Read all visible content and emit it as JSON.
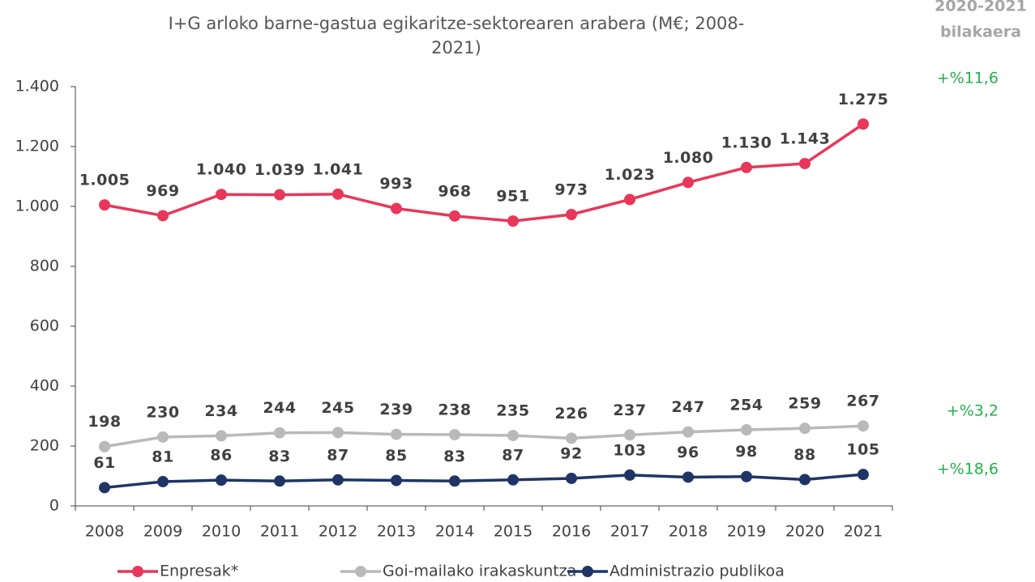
{
  "chart_data": {
    "type": "line",
    "title": [
      "I+G arloko barne-gastua egikaritze-sektorearen arabera (M€; 2008-",
      "2021)"
    ],
    "categories": [
      "2008",
      "2009",
      "2010",
      "2011",
      "2012",
      "2013",
      "2014",
      "2015",
      "2016",
      "2017",
      "2018",
      "2019",
      "2020",
      "2021"
    ],
    "series": [
      {
        "name": "Enpresak*",
        "color": "#e8375a",
        "values": [
          1005,
          969,
          1040,
          1039,
          1041,
          993,
          968,
          951,
          973,
          1023,
          1080,
          1130,
          1143,
          1275
        ],
        "value_labels": [
          "1.005",
          "969",
          "1.040",
          "1.039",
          "1.041",
          "993",
          "968",
          "951",
          "973",
          "1.023",
          "1.080",
          "1.130",
          "1.143",
          "1.275"
        ]
      },
      {
        "name": "Goi-mailako irakaskuntza",
        "color": "#b9b9b9",
        "values": [
          198,
          230,
          234,
          244,
          245,
          239,
          238,
          235,
          226,
          237,
          247,
          254,
          259,
          267
        ]
      },
      {
        "name": "Administrazio publikoa",
        "color": "#1f3566",
        "values": [
          61,
          81,
          86,
          83,
          87,
          85,
          83,
          87,
          92,
          103,
          96,
          98,
          88,
          105
        ]
      }
    ],
    "ylim": [
      0,
      1400
    ],
    "yticks": [
      0,
      200,
      400,
      600,
      800,
      {
        "value": 1000,
        "label": "1.000"
      },
      {
        "value": 1200,
        "label": "1.200"
      },
      {
        "value": 1400,
        "label": "1.400"
      }
    ],
    "legend": "bottom",
    "annotations": {
      "header": [
        "2020-2021",
        "bilakaera"
      ],
      "changes": [
        "+%11,6",
        "+%3,2",
        "+%18,6"
      ],
      "color": "#22b04b"
    }
  }
}
